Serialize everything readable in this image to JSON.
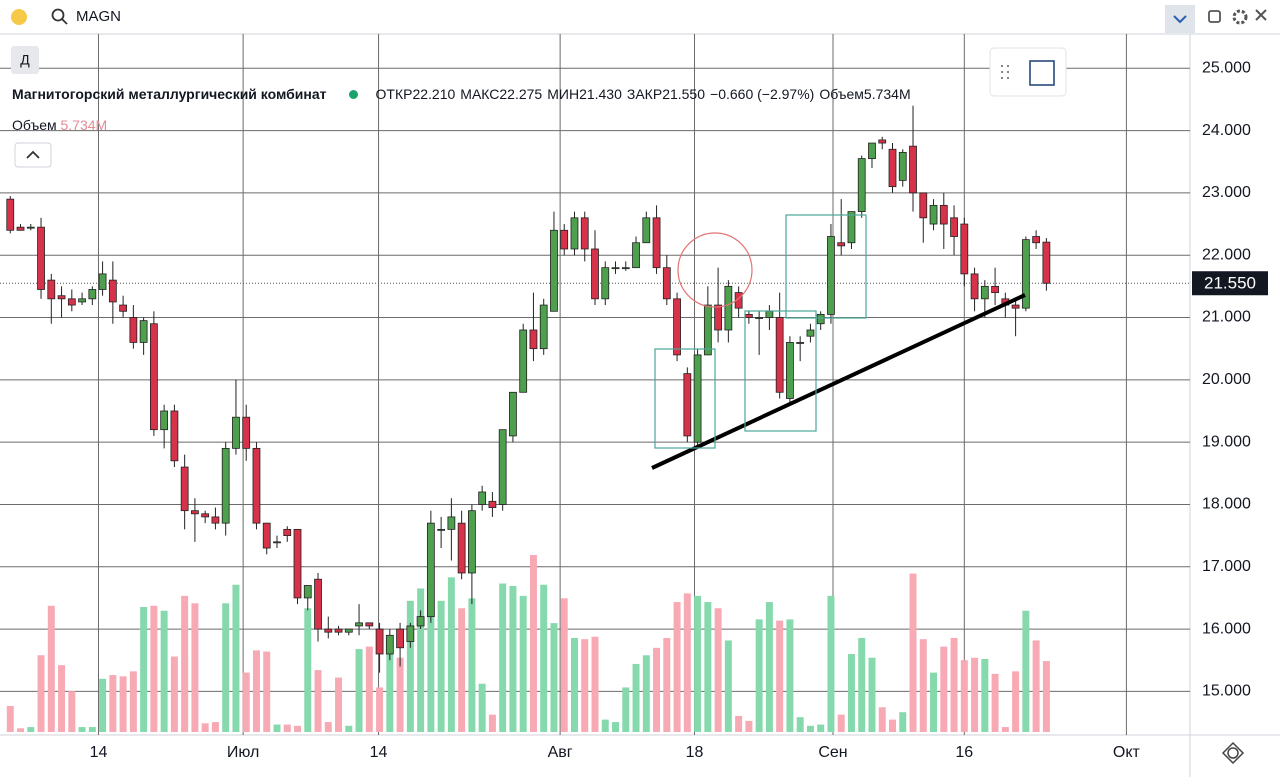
{
  "search": "MAGN",
  "interval_button": "Д",
  "chart_data": {
    "type": "candlestick",
    "title": "Магнитогорский металлургический комбинат",
    "legend": {
      "open_label": "ОТКР",
      "open": "22.210",
      "high_label": "МАКС",
      "high": "22.275",
      "low_label": "МИН",
      "low": "21.430",
      "close_label": "ЗАКР",
      "close": "21.550",
      "change": "−0.660 (−2.97%)",
      "volume_label": "Объем",
      "volume": "5.734M"
    },
    "volume_row": {
      "label": "Объем",
      "value": "5.734M"
    },
    "last_price": {
      "value": 21.55,
      "label": "21.550"
    },
    "up_color": "#4e9f4e",
    "down_color": "#d6334a",
    "volume_up_color": "#86d9ad",
    "volume_down_color": "#f7a9b4",
    "grid": true,
    "ylim": [
      14.3,
      25.55
    ],
    "yticks": [
      {
        "value": 15,
        "label": "15.000"
      },
      {
        "value": 16,
        "label": "16.000"
      },
      {
        "value": 17,
        "label": "17.000"
      },
      {
        "value": 18,
        "label": "18.000"
      },
      {
        "value": 19,
        "label": "19.000"
      },
      {
        "value": 20,
        "label": "20.000"
      },
      {
        "value": 21,
        "label": "21.000"
      },
      {
        "value": 22,
        "label": "22.000"
      },
      {
        "value": 23,
        "label": "23.000"
      },
      {
        "value": 24,
        "label": "24.000"
      },
      {
        "value": 25,
        "label": "25.000"
      }
    ],
    "xlim": [
      -1,
      115
    ],
    "xticks": [
      {
        "value": 8.6,
        "label": "14"
      },
      {
        "value": 22.7,
        "label": "Июл"
      },
      {
        "value": 35.9,
        "label": "14"
      },
      {
        "value": 53.6,
        "label": "Авг"
      },
      {
        "value": 66.7,
        "label": "18"
      },
      {
        "value": 80.2,
        "label": "Сен"
      },
      {
        "value": 93,
        "label": "16"
      },
      {
        "value": 108.8,
        "label": "Окт"
      }
    ],
    "vlim": [
      0,
      16
    ],
    "open": [
      22.9,
      22.45,
      22.45,
      22.45,
      21.6,
      21.35,
      21.3,
      21.25,
      21.3,
      21.45,
      21.6,
      21.2,
      21.0,
      20.6,
      20.9,
      19.2,
      19.5,
      18.6,
      17.9,
      17.85,
      17.8,
      17.7,
      18.9,
      19.4,
      18.9,
      17.7,
      17.4,
      17.6,
      17.6,
      16.5,
      16.8,
      16.0,
      16.0,
      15.95,
      16.05,
      16.1,
      16.0,
      15.6,
      16.0,
      15.8,
      16.05,
      16.2,
      17.6,
      17.6,
      17.7,
      16.9,
      18.0,
      18.05,
      18.0,
      19.1,
      19.8,
      20.8,
      20.5,
      21.1,
      22.4,
      22.1,
      22.6,
      22.1,
      21.3,
      21.8,
      21.8,
      21.8,
      22.2,
      22.6,
      21.8,
      21.3,
      20.1,
      19.0,
      20.4,
      21.2,
      20.8,
      21.4,
      21.05,
      21.0,
      21.0,
      21.0,
      19.7,
      20.6,
      20.7,
      20.9,
      21.05,
      22.2,
      22.2,
      22.7,
      23.55,
      23.85,
      23.7,
      23.2,
      23.75,
      23.0,
      22.5,
      22.8,
      22.6,
      22.5,
      21.7,
      21.3,
      21.5,
      21.3,
      21.2,
      21.15,
      22.3,
      22.21
    ],
    "high": [
      22.95,
      22.5,
      22.5,
      22.6,
      21.7,
      21.5,
      21.45,
      21.4,
      21.5,
      21.9,
      21.9,
      21.35,
      21.2,
      21.0,
      21.1,
      19.6,
      19.6,
      18.8,
      18.1,
      17.9,
      17.95,
      19.0,
      20.0,
      19.6,
      19.0,
      17.7,
      17.5,
      17.65,
      17.6,
      16.7,
      16.9,
      16.2,
      16.05,
      16.0,
      16.4,
      16.1,
      16.1,
      16.0,
      16.1,
      16.1,
      16.3,
      17.9,
      17.8,
      18.1,
      17.9,
      18.0,
      18.3,
      18.2,
      19.2,
      19.8,
      20.9,
      21.4,
      21.3,
      22.7,
      22.5,
      22.7,
      22.7,
      22.4,
      21.9,
      21.9,
      21.9,
      22.3,
      22.7,
      22.8,
      22.0,
      21.4,
      20.2,
      20.5,
      21.5,
      21.8,
      21.6,
      21.5,
      21.1,
      21.1,
      21.2,
      21.4,
      20.7,
      20.7,
      20.9,
      21.1,
      22.5,
      22.9,
      22.7,
      23.6,
      23.8,
      23.9,
      23.8,
      23.7,
      24.4,
      23.0,
      22.9,
      23.0,
      22.8,
      22.6,
      21.8,
      21.6,
      21.8,
      21.4,
      21.3,
      22.3,
      22.4,
      22.275
    ],
    "low": [
      22.35,
      22.4,
      22.4,
      21.3,
      20.9,
      21.0,
      21.1,
      21.2,
      21.2,
      21.35,
      20.9,
      21.0,
      20.5,
      20.4,
      19.1,
      18.9,
      18.6,
      17.6,
      17.4,
      17.7,
      17.6,
      17.5,
      18.8,
      18.7,
      17.6,
      17.2,
      17.3,
      17.4,
      16.4,
      16.3,
      15.8,
      15.85,
      15.9,
      15.9,
      15.9,
      16.0,
      15.3,
      15.5,
      15.4,
      15.7,
      16.0,
      16.1,
      17.3,
      17.1,
      16.8,
      16.4,
      17.9,
      17.8,
      17.9,
      19.0,
      19.8,
      20.3,
      20.4,
      21.1,
      22.0,
      22.0,
      21.9,
      21.2,
      21.2,
      21.7,
      21.75,
      21.8,
      22.2,
      21.7,
      21.2,
      20.3,
      19.0,
      18.9,
      20.4,
      20.6,
      20.6,
      21.0,
      20.9,
      20.4,
      20.8,
      19.7,
      19.6,
      20.3,
      20.6,
      20.8,
      20.9,
      22.0,
      22.1,
      22.6,
      23.4,
      23.7,
      23.0,
      23.1,
      22.7,
      22.2,
      22.4,
      22.1,
      22.0,
      21.5,
      21.1,
      21.0,
      21.2,
      21.0,
      20.7,
      21.1,
      22.1,
      21.43
    ],
    "close": [
      22.4,
      22.4,
      22.45,
      21.45,
      21.3,
      21.3,
      21.2,
      21.3,
      21.45,
      21.7,
      21.25,
      21.1,
      20.6,
      20.95,
      19.2,
      19.5,
      18.7,
      17.9,
      17.85,
      17.8,
      17.7,
      18.9,
      19.4,
      18.9,
      17.7,
      17.3,
      17.4,
      17.5,
      16.5,
      16.7,
      16.0,
      15.95,
      15.95,
      16.0,
      16.1,
      16.05,
      15.6,
      15.9,
      15.7,
      16.05,
      16.2,
      17.7,
      17.6,
      17.8,
      16.9,
      17.9,
      18.2,
      17.95,
      19.2,
      19.8,
      20.8,
      20.5,
      21.2,
      22.4,
      22.1,
      22.6,
      22.1,
      21.3,
      21.8,
      21.8,
      21.8,
      22.2,
      22.6,
      21.8,
      21.3,
      20.4,
      19.1,
      20.4,
      21.2,
      20.8,
      21.5,
      21.15,
      21.0,
      21.0,
      21.1,
      19.8,
      20.6,
      20.6,
      20.8,
      21.05,
      22.3,
      22.15,
      22.7,
      23.55,
      23.8,
      23.8,
      23.1,
      23.65,
      23.0,
      22.6,
      22.8,
      22.5,
      22.3,
      21.7,
      21.3,
      21.5,
      21.4,
      21.2,
      21.15,
      22.25,
      22.2,
      21.55
    ],
    "volume": [
      2.1,
      0.3,
      0.4,
      6.2,
      10.2,
      5.4,
      3.3,
      0.4,
      0.4,
      4.3,
      4.6,
      4.5,
      4.9,
      10.1,
      10.2,
      9.8,
      6.1,
      11.0,
      10.4,
      0.7,
      0.8,
      10.4,
      11.9,
      4.8,
      6.6,
      6.5,
      0.6,
      0.6,
      0.5,
      10.0,
      5.0,
      0.8,
      4.4,
      0.5,
      6.7,
      6.9,
      3.6,
      6.9,
      6.0,
      10.6,
      11.6,
      10.4,
      10.6,
      12.5,
      10.0,
      10.8,
      3.9,
      1.4,
      12.0,
      11.8,
      11.0,
      14.3,
      11.9,
      8.8,
      10.8,
      7.6,
      7.5,
      7.7,
      1.0,
      0.8,
      3.6,
      5.5,
      6.2,
      6.8,
      7.6,
      10.5,
      11.2,
      11.0,
      10.5,
      10.0,
      7.4,
      1.3,
      0.9,
      9.1,
      10.5,
      9.0,
      9.1,
      1.2,
      0.5,
      0.6,
      11.0,
      1.4,
      6.3,
      7.6,
      6.0,
      2.0,
      1.0,
      1.6,
      12.8,
      7.5,
      4.8,
      6.9,
      7.6,
      5.8,
      6.0,
      5.9,
      4.7,
      0.4,
      4.9,
      9.8,
      7.4,
      5.734
    ]
  }
}
